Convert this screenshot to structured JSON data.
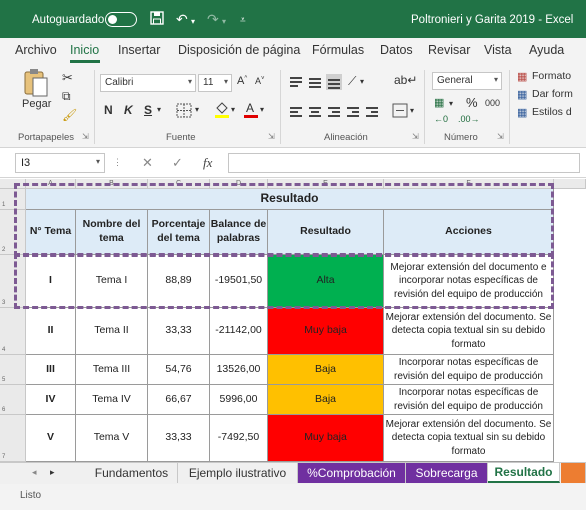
{
  "titlebar": {
    "autosave_label": "Autoguardado",
    "window_title": "Poltronieri y Garita 2019  -  Excel"
  },
  "menu": {
    "tabs": [
      "Archivo",
      "Inicio",
      "Insertar",
      "Disposición de página",
      "Fórmulas",
      "Datos",
      "Revisar",
      "Vista",
      "Ayuda"
    ],
    "active": "Inicio"
  },
  "ribbon": {
    "paste_label": "Pegar",
    "font_name": "Calibri",
    "font_size": "11",
    "bold": "N",
    "italic": "K",
    "underline": "S",
    "number_format": "General",
    "percent": "%",
    "thousands": "000",
    "styles": [
      "Formato",
      "Dar form",
      "Estilos d"
    ],
    "groups": {
      "clipboard": "Portapapeles",
      "font": "Fuente",
      "alignment": "Alineación",
      "number": "Número"
    },
    "accent_colors": {
      "fill": "#ffff00",
      "font": "#e00000"
    }
  },
  "formula_bar": {
    "name_box": "I3",
    "fx": "fx",
    "value": ""
  },
  "grid": {
    "columns": [
      "A",
      "B",
      "C",
      "D",
      "E",
      "F"
    ],
    "row_numbers": [
      "1",
      "2",
      "3",
      "4",
      "5",
      "6",
      "7"
    ],
    "title": "Resultado",
    "headers": [
      "N° Tema",
      "Nombre del tema",
      "Porcentaje del tema",
      "Balance de palabras",
      "Resultado",
      "Acciones"
    ],
    "rows": [
      {
        "n": "I",
        "name": "Tema I",
        "pct": "88,89",
        "balance": "-19501,50",
        "result": "Alta",
        "color": "#00b050",
        "action": "Mejorar extensión del documento e incorporar notas específicas de revisión del equipo de producción"
      },
      {
        "n": "II",
        "name": "Tema II",
        "pct": "33,33",
        "balance": "-21142,00",
        "result": "Muy baja",
        "color": "#ff0000",
        "action": "Mejorar extensión del documento. Se detecta copia textual sin su debido formato"
      },
      {
        "n": "III",
        "name": "Tema III",
        "pct": "54,76",
        "balance": "13526,00",
        "result": "Baja",
        "color": "#ffc000",
        "action": "Incorporar notas específicas de revisión del equipo de producción"
      },
      {
        "n": "IV",
        "name": "Tema IV",
        "pct": "66,67",
        "balance": "5996,00",
        "result": "Baja",
        "color": "#ffc000",
        "action": "Incorporar notas específicas de revisión del equipo de producción"
      },
      {
        "n": "V",
        "name": "Tema V",
        "pct": "33,33",
        "balance": "-7492,50",
        "result": "Muy baja",
        "color": "#ff0000",
        "action": "Mejorar extensión del documento. Se detecta copia textual sin su debido formato"
      }
    ]
  },
  "sheet_tabs": [
    {
      "label": "Fundamentos",
      "color": "#f0f0f0",
      "text": "#333333"
    },
    {
      "label": "Ejemplo ilustrativo",
      "color": "#f0f0f0",
      "text": "#333333"
    },
    {
      "label": "%Comprobación",
      "color": "#7030a0",
      "text": "#ffffff"
    },
    {
      "label": "Sobrecarga",
      "color": "#7030a0",
      "text": "#ffffff"
    },
    {
      "label": "Resultado",
      "color": "#ffffff",
      "text": "#217346"
    }
  ],
  "status": "Listo",
  "colors": {
    "excel_green": "#217346",
    "header_fill": "#ddebf7",
    "dash": "#7d5a93"
  }
}
